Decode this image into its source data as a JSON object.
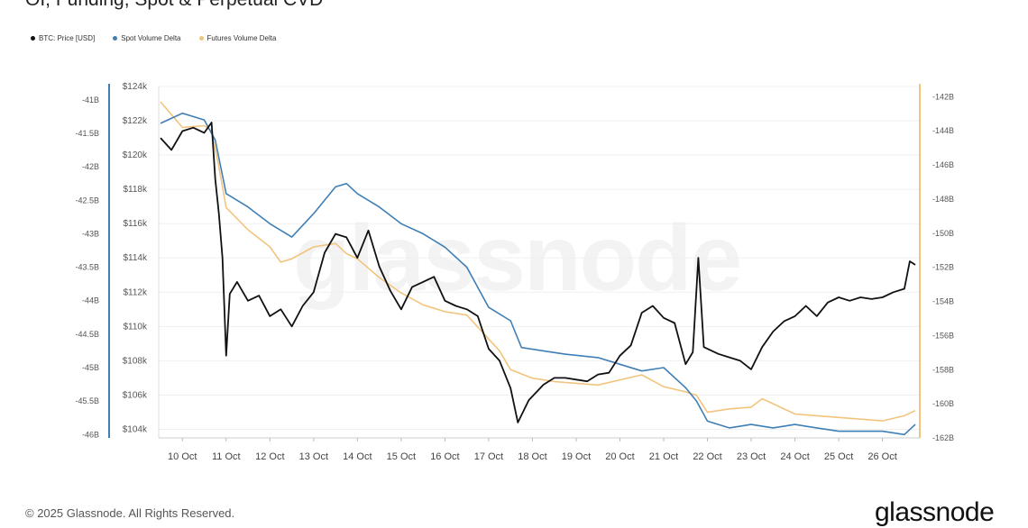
{
  "page": {
    "title": "OI, Funding, Spot & Perpetual CVD",
    "watermark": "glassnode",
    "copyright": "© 2025 Glassnode. All Rights Reserved.",
    "brand": "glassnode"
  },
  "colors": {
    "price": "#111111",
    "spot": "#3f7fb5",
    "futures": "#f2c47d",
    "left_axis": "#3f7fb5",
    "right_axis": "#f2c47d",
    "grid": "#f0f0f0"
  },
  "legend": [
    {
      "label": "BTC: Price [USD]",
      "color": "#111111"
    },
    {
      "label": "Spot Volume Delta",
      "color": "#3f7fb5"
    },
    {
      "label": "Futures Volume Delta",
      "color": "#f2c47d"
    }
  ],
  "chart_data": {
    "type": "line",
    "title": "OI, Funding, Spot & Perpetual CVD",
    "grid": true,
    "legend_position": "top-left",
    "x_start": "2025-10-09 12:00",
    "x_end": "2025-10-26 18:00",
    "x_ticks": [
      "10 Oct",
      "11 Oct",
      "12 Oct",
      "13 Oct",
      "14 Oct",
      "15 Oct",
      "16 Oct",
      "17 Oct",
      "18 Oct",
      "19 Oct",
      "20 Oct",
      "21 Oct",
      "22 Oct",
      "23 Oct",
      "24 Oct",
      "25 Oct",
      "26 Oct"
    ],
    "axes": {
      "spot": {
        "side": "left",
        "range": [
          -46.05,
          -40.8
        ],
        "ticks": [
          "-41B",
          "-41.5B",
          "-42B",
          "-42.5B",
          "-43B",
          "-43.5B",
          "-44B",
          "-44.5B",
          "-45B",
          "-45.5B",
          "-46B"
        ],
        "tick_values": [
          -41,
          -41.5,
          -42,
          -42.5,
          -43,
          -43.5,
          -44,
          -44.5,
          -45,
          -45.5,
          -46
        ]
      },
      "price": {
        "side": "left-inner",
        "range": [
          103.5,
          124
        ],
        "ticks": [
          "$124k",
          "$122k",
          "$120k",
          "$118k",
          "$116k",
          "$114k",
          "$112k",
          "$110k",
          "$108k",
          "$106k",
          "$104k"
        ],
        "tick_values": [
          124,
          122,
          120,
          118,
          116,
          114,
          112,
          110,
          108,
          106,
          104
        ]
      },
      "futures": {
        "side": "right",
        "range": [
          -162,
          -141.4
        ],
        "ticks": [
          "-142B",
          "-144B",
          "-146B",
          "-148B",
          "-150B",
          "-152B",
          "-154B",
          "-156B",
          "-158B",
          "-160B",
          "-162B"
        ],
        "tick_values": [
          -142,
          -144,
          -146,
          -148,
          -150,
          -152,
          -154,
          -156,
          -158,
          -160,
          -162
        ]
      }
    },
    "series": [
      {
        "name": "BTC: Price [USD]",
        "axis": "price",
        "color": "#111111",
        "points": [
          [
            "2025-10-09 12:00",
            121.0
          ],
          [
            "2025-10-09 18:00",
            120.3
          ],
          [
            "2025-10-10 00:00",
            121.4
          ],
          [
            "2025-10-10 06:00",
            121.6
          ],
          [
            "2025-10-10 12:00",
            121.3
          ],
          [
            "2025-10-10 16:00",
            121.9
          ],
          [
            "2025-10-10 18:00",
            118.6
          ],
          [
            "2025-10-10 20:00",
            116.6
          ],
          [
            "2025-10-10 22:00",
            114.0
          ],
          [
            "2025-10-11 00:00",
            108.3
          ],
          [
            "2025-10-11 02:00",
            111.9
          ],
          [
            "2025-10-11 06:00",
            112.6
          ],
          [
            "2025-10-11 12:00",
            111.5
          ],
          [
            "2025-10-11 18:00",
            111.8
          ],
          [
            "2025-10-12 00:00",
            110.6
          ],
          [
            "2025-10-12 06:00",
            111.0
          ],
          [
            "2025-10-12 12:00",
            110.0
          ],
          [
            "2025-10-12 18:00",
            111.2
          ],
          [
            "2025-10-13 00:00",
            112.0
          ],
          [
            "2025-10-13 06:00",
            114.3
          ],
          [
            "2025-10-13 12:00",
            115.4
          ],
          [
            "2025-10-13 18:00",
            115.2
          ],
          [
            "2025-10-14 00:00",
            114.0
          ],
          [
            "2025-10-14 06:00",
            115.6
          ],
          [
            "2025-10-14 12:00",
            113.5
          ],
          [
            "2025-10-14 18:00",
            112.1
          ],
          [
            "2025-10-15 00:00",
            111.0
          ],
          [
            "2025-10-15 06:00",
            112.3
          ],
          [
            "2025-10-15 12:00",
            112.6
          ],
          [
            "2025-10-15 18:00",
            112.9
          ],
          [
            "2025-10-16 00:00",
            111.5
          ],
          [
            "2025-10-16 06:00",
            111.2
          ],
          [
            "2025-10-16 12:00",
            111.0
          ],
          [
            "2025-10-16 18:00",
            110.6
          ],
          [
            "2025-10-17 00:00",
            108.7
          ],
          [
            "2025-10-17 06:00",
            108.0
          ],
          [
            "2025-10-17 12:00",
            106.4
          ],
          [
            "2025-10-17 16:00",
            104.4
          ],
          [
            "2025-10-17 22:00",
            105.7
          ],
          [
            "2025-10-18 06:00",
            106.6
          ],
          [
            "2025-10-18 12:00",
            107.0
          ],
          [
            "2025-10-18 18:00",
            107.0
          ],
          [
            "2025-10-19 06:00",
            106.8
          ],
          [
            "2025-10-19 12:00",
            107.2
          ],
          [
            "2025-10-19 18:00",
            107.3
          ],
          [
            "2025-10-20 00:00",
            108.3
          ],
          [
            "2025-10-20 06:00",
            108.9
          ],
          [
            "2025-10-20 12:00",
            110.8
          ],
          [
            "2025-10-20 18:00",
            111.2
          ],
          [
            "2025-10-21 00:00",
            110.5
          ],
          [
            "2025-10-21 06:00",
            110.2
          ],
          [
            "2025-10-21 12:00",
            107.8
          ],
          [
            "2025-10-21 16:00",
            108.5
          ],
          [
            "2025-10-21 19:00",
            114.0
          ],
          [
            "2025-10-21 22:00",
            108.8
          ],
          [
            "2025-10-22 06:00",
            108.4
          ],
          [
            "2025-10-22 12:00",
            108.2
          ],
          [
            "2025-10-22 18:00",
            108.0
          ],
          [
            "2025-10-23 00:00",
            107.5
          ],
          [
            "2025-10-23 06:00",
            108.8
          ],
          [
            "2025-10-23 12:00",
            109.7
          ],
          [
            "2025-10-23 18:00",
            110.3
          ],
          [
            "2025-10-24 00:00",
            110.6
          ],
          [
            "2025-10-24 06:00",
            111.2
          ],
          [
            "2025-10-24 12:00",
            110.6
          ],
          [
            "2025-10-24 18:00",
            111.4
          ],
          [
            "2025-10-25 00:00",
            111.7
          ],
          [
            "2025-10-25 06:00",
            111.5
          ],
          [
            "2025-10-25 12:00",
            111.7
          ],
          [
            "2025-10-25 18:00",
            111.6
          ],
          [
            "2025-10-26 00:00",
            111.7
          ],
          [
            "2025-10-26 06:00",
            112.0
          ],
          [
            "2025-10-26 12:00",
            112.2
          ],
          [
            "2025-10-26 15:00",
            113.8
          ],
          [
            "2025-10-26 18:00",
            113.6
          ]
        ]
      },
      {
        "name": "Spot Volume Delta",
        "axis": "spot",
        "color": "#3f7fb5",
        "points": [
          [
            "2025-10-09 12:00",
            -41.35
          ],
          [
            "2025-10-10 00:00",
            -41.2
          ],
          [
            "2025-10-10 12:00",
            -41.3
          ],
          [
            "2025-10-10 18:00",
            -41.6
          ],
          [
            "2025-10-11 00:00",
            -42.4
          ],
          [
            "2025-10-11 12:00",
            -42.6
          ],
          [
            "2025-10-12 00:00",
            -42.85
          ],
          [
            "2025-10-12 12:00",
            -43.05
          ],
          [
            "2025-10-13 00:00",
            -42.7
          ],
          [
            "2025-10-13 12:00",
            -42.3
          ],
          [
            "2025-10-13 18:00",
            -42.25
          ],
          [
            "2025-10-14 00:00",
            -42.4
          ],
          [
            "2025-10-14 12:00",
            -42.6
          ],
          [
            "2025-10-15 00:00",
            -42.85
          ],
          [
            "2025-10-15 12:00",
            -43.0
          ],
          [
            "2025-10-16 00:00",
            -43.2
          ],
          [
            "2025-10-16 12:00",
            -43.5
          ],
          [
            "2025-10-17 00:00",
            -44.1
          ],
          [
            "2025-10-17 12:00",
            -44.3
          ],
          [
            "2025-10-17 18:00",
            -44.7
          ],
          [
            "2025-10-18 06:00",
            -44.75
          ],
          [
            "2025-10-18 18:00",
            -44.8
          ],
          [
            "2025-10-19 12:00",
            -44.85
          ],
          [
            "2025-10-20 00:00",
            -44.95
          ],
          [
            "2025-10-20 12:00",
            -45.05
          ],
          [
            "2025-10-21 00:00",
            -45.0
          ],
          [
            "2025-10-21 12:00",
            -45.3
          ],
          [
            "2025-10-21 18:00",
            -45.5
          ],
          [
            "2025-10-22 00:00",
            -45.8
          ],
          [
            "2025-10-22 12:00",
            -45.9
          ],
          [
            "2025-10-23 00:00",
            -45.85
          ],
          [
            "2025-10-23 12:00",
            -45.9
          ],
          [
            "2025-10-24 00:00",
            -45.85
          ],
          [
            "2025-10-24 12:00",
            -45.9
          ],
          [
            "2025-10-25 00:00",
            -45.95
          ],
          [
            "2025-10-25 12:00",
            -45.95
          ],
          [
            "2025-10-26 00:00",
            -45.95
          ],
          [
            "2025-10-26 12:00",
            -46.0
          ],
          [
            "2025-10-26 18:00",
            -45.85
          ]
        ]
      },
      {
        "name": "Futures Volume Delta",
        "axis": "futures",
        "color": "#f2c47d",
        "points": [
          [
            "2025-10-09 12:00",
            -142.3
          ],
          [
            "2025-10-10 00:00",
            -143.8
          ],
          [
            "2025-10-10 12:00",
            -143.7
          ],
          [
            "2025-10-10 16:00",
            -144.0
          ],
          [
            "2025-10-10 20:00",
            -146.1
          ],
          [
            "2025-10-11 00:00",
            -148.5
          ],
          [
            "2025-10-11 12:00",
            -149.8
          ],
          [
            "2025-10-12 00:00",
            -150.8
          ],
          [
            "2025-10-12 06:00",
            -151.7
          ],
          [
            "2025-10-12 12:00",
            -151.5
          ],
          [
            "2025-10-13 00:00",
            -150.8
          ],
          [
            "2025-10-13 12:00",
            -150.6
          ],
          [
            "2025-10-13 18:00",
            -151.2
          ],
          [
            "2025-10-14 00:00",
            -151.5
          ],
          [
            "2025-10-14 12:00",
            -152.6
          ],
          [
            "2025-10-15 00:00",
            -153.5
          ],
          [
            "2025-10-15 12:00",
            -154.2
          ],
          [
            "2025-10-16 00:00",
            -154.6
          ],
          [
            "2025-10-16 12:00",
            -154.8
          ],
          [
            "2025-10-17 00:00",
            -156.2
          ],
          [
            "2025-10-17 06:00",
            -156.9
          ],
          [
            "2025-10-17 12:00",
            -158.0
          ],
          [
            "2025-10-18 00:00",
            -158.5
          ],
          [
            "2025-10-18 12:00",
            -158.7
          ],
          [
            "2025-10-19 00:00",
            -158.8
          ],
          [
            "2025-10-19 12:00",
            -158.9
          ],
          [
            "2025-10-20 00:00",
            -158.6
          ],
          [
            "2025-10-20 12:00",
            -158.3
          ],
          [
            "2025-10-21 00:00",
            -159.0
          ],
          [
            "2025-10-21 12:00",
            -159.3
          ],
          [
            "2025-10-21 18:00",
            -159.5
          ],
          [
            "2025-10-22 00:00",
            -160.5
          ],
          [
            "2025-10-22 12:00",
            -160.3
          ],
          [
            "2025-10-23 00:00",
            -160.2
          ],
          [
            "2025-10-23 06:00",
            -159.7
          ],
          [
            "2025-10-23 12:00",
            -160.0
          ],
          [
            "2025-10-24 00:00",
            -160.6
          ],
          [
            "2025-10-24 12:00",
            -160.7
          ],
          [
            "2025-10-25 00:00",
            -160.8
          ],
          [
            "2025-10-25 12:00",
            -160.9
          ],
          [
            "2025-10-26 00:00",
            -161.0
          ],
          [
            "2025-10-26 12:00",
            -160.7
          ],
          [
            "2025-10-26 18:00",
            -160.4
          ]
        ]
      }
    ]
  }
}
